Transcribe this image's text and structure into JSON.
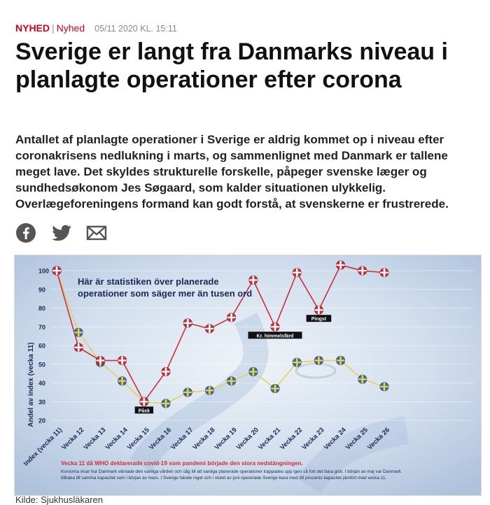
{
  "article": {
    "section": "NYHED",
    "subsection": "Nyhed",
    "timestamp": "05/11 2020 KL. 15:11",
    "headline": "Sverige er langt fra Danmarks niveau i planlagte operationer efter corona",
    "lead": "Antallet af planlagte operationer i Sverige er aldrig kommet op i niveau efter coronakrisens nedlukning i marts, og sammenlignet med Danmark er tallene meget lave. Det skyldes strukturelle forskelle, påpeger svenske læger og sundhedsøkonom Jes Søgaard, som kalder situationen ulykkelig. Overlægeforeningens formand kan godt forstå, at svenskerne er frustrerede.",
    "share_icons": [
      "facebook-icon",
      "twitter-icon",
      "email-icon"
    ],
    "image_credit": "Kilde: Sjukhusläkaren"
  },
  "colors": {
    "accent": "#d0021b",
    "denmark_line": "#c8303a",
    "sweden_line": "#e3d05a"
  },
  "chart_data": {
    "type": "line",
    "title": "Här är statistiken över planerade operationer som säger mer än tusen ord",
    "ylabel": "Andel av index (vecka 11)",
    "xlabel": "",
    "ylim": [
      20,
      100
    ],
    "yticks": [
      100,
      90,
      80,
      70,
      60,
      50,
      40,
      30,
      20
    ],
    "categories": [
      "Index (vecka 11)",
      "Vecka 12",
      "Vecka 13",
      "Vecka 14",
      "Vecka 15",
      "Vecka 16",
      "Vecka 17",
      "Vecka 18",
      "Vecka 19",
      "Vecka 20",
      "Vecka 21",
      "Vecka 22",
      "Vecka 23",
      "Vecka 24",
      "Vecka 25",
      "Vecka 26"
    ],
    "series": [
      {
        "name": "Danmark",
        "values": [
          100,
          59,
          52,
          52,
          30,
          46,
          72,
          69,
          75,
          95,
          70,
          99,
          79,
          103,
          100,
          99
        ]
      },
      {
        "name": "Sverige",
        "values": [
          100,
          67,
          51,
          41,
          30,
          29,
          35,
          36,
          41,
          46,
          37,
          51,
          52,
          52,
          42,
          38
        ]
      }
    ],
    "annotations": [
      {
        "label": "Påsk",
        "category": "Vecka 15"
      },
      {
        "label": "Kr. himmelsfärd",
        "category": "Vecka 21"
      },
      {
        "label": "Pingst",
        "category": "Vecka 23"
      }
    ],
    "footnote_red": "Vecka 11 då WHO deklarerade covid-19 som pandemi började den stora nedstängningen.",
    "footnote_1": "Kurvorna visar hur Danmark värnade den vanliga vården och såg till att vanliga planerade operationer trappades upp igen så fort det bara gick. I början av maj var Danmark",
    "footnote_2": "tillbaka till samma kapacitet som i början av mars. I Sverige hände inget och i slutet av juni opererade Sverige bara med 38 procents kapacitet jämfört med vecka 11.",
    "grid": true,
    "legend": "none"
  }
}
